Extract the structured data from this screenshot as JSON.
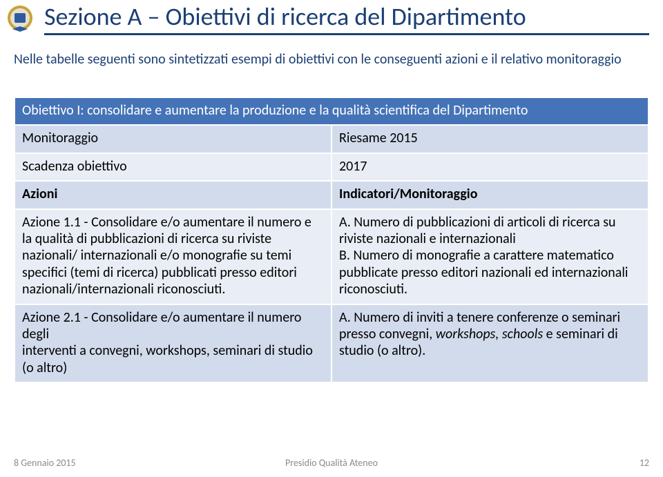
{
  "colors": {
    "title": "#1b3f74",
    "title_underline": "#1b3f74",
    "intro_text": "#1b3f74",
    "header_bg": "#4573b7",
    "header_fg": "#ffffff",
    "row_light": "#d2dbec",
    "row_med": "#e9edf5",
    "footer_text": "#8a8a8a",
    "body_text": "#000000"
  },
  "logo": {
    "rim": "#c8a33a",
    "inner": "#e6e0cf",
    "ribbon": "#2e5aa0"
  },
  "title": "Sezione A – Obiettivi di ricerca del Dipartimento",
  "intro": "Nelle tabelle seguenti sono sintetizzati esempi di obiettivi con le conseguenti azioni e il relativo monitoraggio",
  "table": {
    "header": "Obiettivo I: consolidare e aumentare la produzione e la qualità scientifica del Dipartimento",
    "rows": [
      {
        "left": "Monitoraggio",
        "right": "Riesame 2015",
        "shade": "light"
      },
      {
        "left": "Scadenza obiettivo",
        "right": "2017",
        "shade": "med"
      },
      {
        "left": "Azioni",
        "right": "Indicatori/Monitoraggio",
        "shade": "light",
        "bold": true
      },
      {
        "left": "Azione 1.1 - Consolidare e/o aumentare il numero e la qualità di pubblicazioni di ricerca su riviste nazionali/ internazionali e/o monografie su temi specifici (temi di ricerca) pubblicati presso editori nazionali/internazionali riconosciuti.",
        "right": "A. Numero di pubblicazioni di articoli di ricerca su riviste nazionali e internazionali\nB. Numero di monografie a carattere matematico pubblicate presso editori nazionali ed internazionali riconosciuti.",
        "shade": "med"
      },
      {
        "left": "Azione 2.1 - Consolidare e/o aumentare il numero degli\ninterventi a convegni, workshops, seminari di studio (o altro)",
        "right": "A. Numero di inviti a tenere conferenze o seminari presso convegni, workshops, schools e seminari di studio (o altro).",
        "right_html": "A. Numero di inviti a tenere conferenze o seminari presso convegni, <i>workshops, schools</i> e seminari di studio (o altro).",
        "shade": "light"
      }
    ]
  },
  "footer": {
    "date": "8 Gennaio 2015",
    "center": "Presidio Qualità Ateneo",
    "page": "12"
  }
}
